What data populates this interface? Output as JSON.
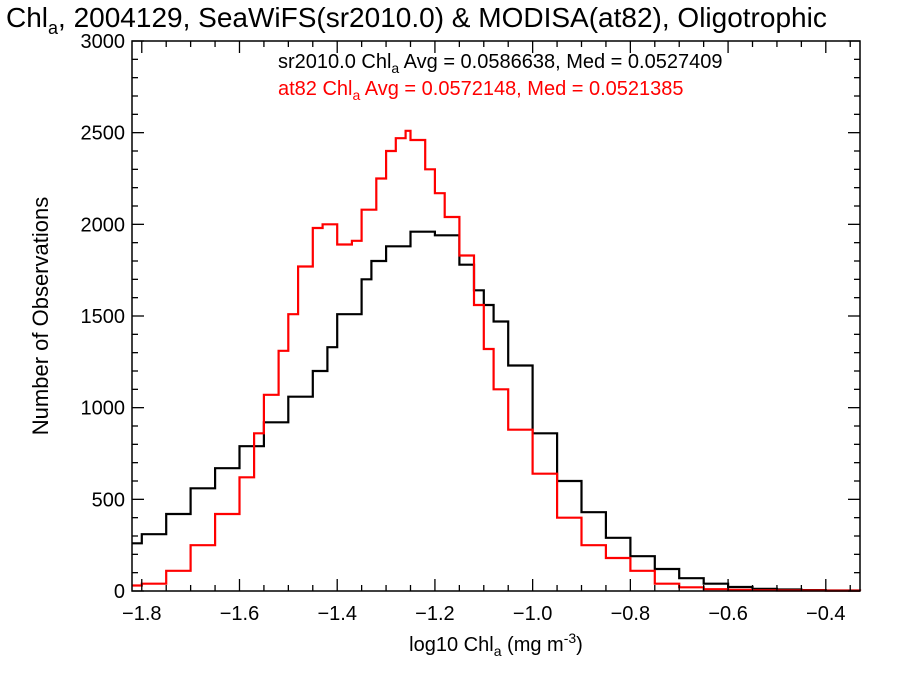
{
  "chart_data": {
    "type": "line",
    "title": {
      "pre": "Chl",
      "sub": "a",
      "post": ", 2004129, SeaWiFS(sr2010.0) & MODISA(at82), Oligotrophic"
    },
    "xlabel": {
      "pre": "log10 Chl",
      "sub": "a",
      "mid": " (mg m",
      "sup": "-3",
      "post": ")"
    },
    "ylabel": "Number of Observations",
    "xlim": [
      -1.82,
      -0.33
    ],
    "ylim": [
      0,
      3000
    ],
    "x_ticks": [
      -1.8,
      -1.6,
      -1.4,
      -1.2,
      -1.0,
      -0.8,
      -0.6,
      -0.4
    ],
    "x_tick_labels": [
      "−1.8",
      "−1.6",
      "−1.4",
      "−1.2",
      "−1.0",
      "−0.8",
      "−0.6",
      "−0.4"
    ],
    "y_ticks": [
      0,
      500,
      1000,
      1500,
      2000,
      2500,
      3000
    ],
    "y_tick_labels": [
      "0",
      "500",
      "1000",
      "1500",
      "2000",
      "2500",
      "3000"
    ],
    "grid": false,
    "legend_placement": "top-right",
    "series": [
      {
        "name": "sr2010.0",
        "color": "#000000",
        "legend": {
          "pre": "sr2010.0 Chl",
          "sub": "a",
          "post": " Avg = 0.0586638, Med = 0.0527409"
        },
        "x": [
          -1.82,
          -1.8,
          -1.75,
          -1.7,
          -1.65,
          -1.6,
          -1.55,
          -1.5,
          -1.45,
          -1.42,
          -1.4,
          -1.35,
          -1.33,
          -1.3,
          -1.25,
          -1.2,
          -1.15,
          -1.12,
          -1.1,
          -1.08,
          -1.05,
          -1.0,
          -0.95,
          -0.9,
          -0.85,
          -0.8,
          -0.75,
          -0.7,
          -0.65,
          -0.6,
          -0.55,
          -0.5,
          -0.45,
          -0.4,
          -0.33
        ],
        "y": [
          260,
          310,
          420,
          560,
          670,
          790,
          920,
          1060,
          1200,
          1330,
          1510,
          1700,
          1800,
          1880,
          1960,
          1940,
          1780,
          1640,
          1560,
          1470,
          1230,
          860,
          600,
          430,
          290,
          190,
          120,
          70,
          40,
          22,
          12,
          8,
          5,
          3,
          2
        ]
      },
      {
        "name": "at82",
        "color": "#ff0000",
        "legend": {
          "pre": "at82 Chl",
          "sub": "a",
          "post": " Avg = 0.0572148, Med = 0.0521385"
        },
        "x": [
          -1.82,
          -1.8,
          -1.75,
          -1.7,
          -1.65,
          -1.6,
          -1.57,
          -1.55,
          -1.52,
          -1.5,
          -1.48,
          -1.45,
          -1.43,
          -1.4,
          -1.37,
          -1.35,
          -1.32,
          -1.3,
          -1.28,
          -1.26,
          -1.25,
          -1.22,
          -1.2,
          -1.18,
          -1.15,
          -1.12,
          -1.1,
          -1.08,
          -1.05,
          -1.0,
          -0.95,
          -0.9,
          -0.85,
          -0.8,
          -0.75,
          -0.7,
          -0.65,
          -0.6,
          -0.55,
          -0.5,
          -0.4,
          -0.33
        ],
        "y": [
          30,
          40,
          110,
          250,
          420,
          620,
          860,
          1070,
          1310,
          1510,
          1770,
          1980,
          2000,
          1890,
          1910,
          2080,
          2250,
          2400,
          2470,
          2510,
          2460,
          2300,
          2170,
          2040,
          1830,
          1560,
          1320,
          1100,
          880,
          640,
          400,
          250,
          180,
          110,
          40,
          20,
          10,
          6,
          4,
          3,
          2,
          1
        ]
      }
    ]
  }
}
